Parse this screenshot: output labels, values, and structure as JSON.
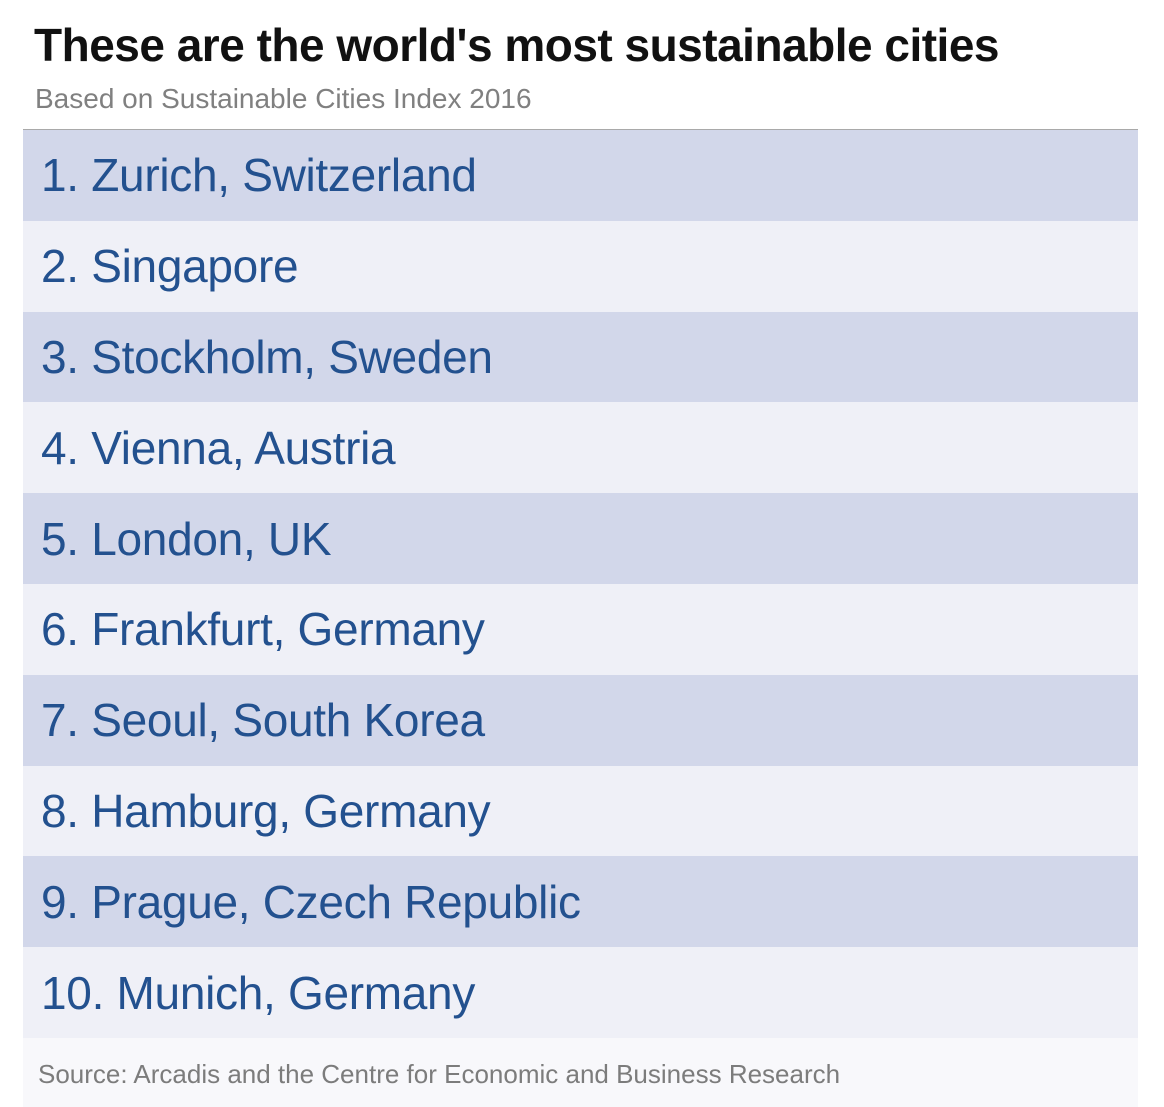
{
  "title": "These are the world's most sustainable cities",
  "subtitle": "Based on Sustainable Cities Index 2016",
  "source": "Source: Arcadis and the Centre for Economic and Business Research",
  "colors": {
    "row_dark": "#d2d7ea",
    "row_light": "#eff0f7",
    "text_blue": "#23518f"
  },
  "chart_data": {
    "type": "table",
    "title": "These are the world's most sustainable cities",
    "subtitle": "Based on Sustainable Cities Index 2016",
    "rows": [
      "1. Zurich, Switzerland",
      "2. Singapore",
      "3. Stockholm, Sweden",
      "4. Vienna, Austria",
      "5. London, UK",
      "6. Frankfurt, Germany",
      "7. Seoul, South Korea",
      "8. Hamburg, Germany",
      "9. Prague, Czech Republic",
      "10. Munich, Germany"
    ],
    "source": "Source: Arcadis and the Centre for Economic and Business Research"
  }
}
